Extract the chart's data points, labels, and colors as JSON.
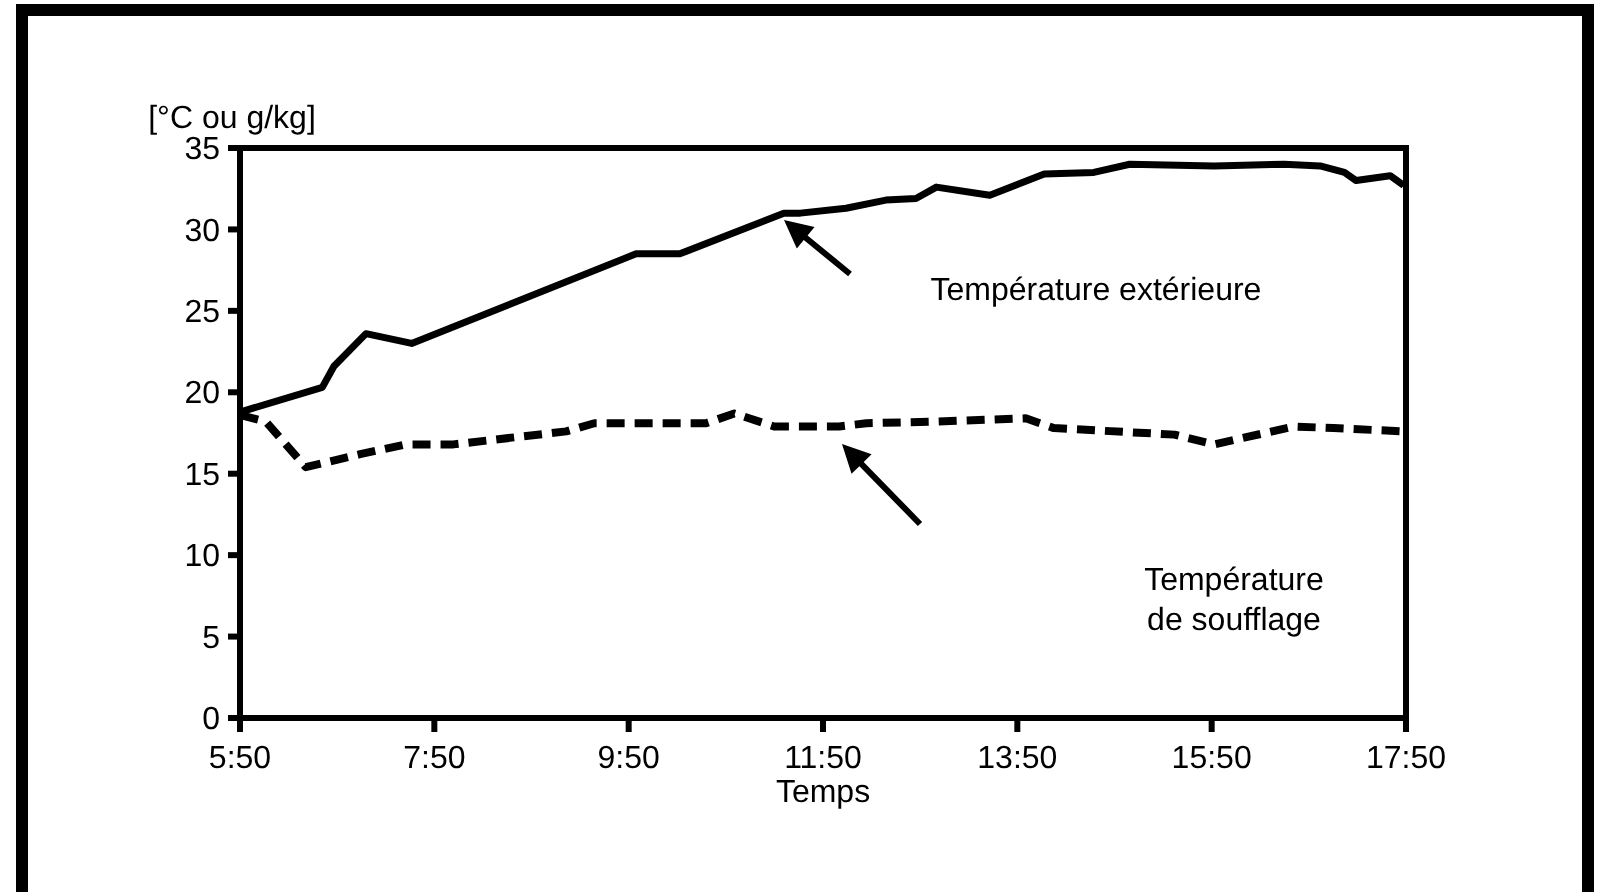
{
  "chart_data": {
    "type": "line",
    "ylabel": "[°C ou g/kg]",
    "xlabel": "Temps",
    "xlim": [
      5.8333,
      17.8333
    ],
    "xticks": [
      {
        "value": 5.8333,
        "label": "5:50"
      },
      {
        "value": 7.8333,
        "label": "7:50"
      },
      {
        "value": 9.8333,
        "label": "9:50"
      },
      {
        "value": 11.8333,
        "label": "11:50"
      },
      {
        "value": 13.8333,
        "label": "13:50"
      },
      {
        "value": 15.8333,
        "label": "15:50"
      },
      {
        "value": 17.8333,
        "label": "17:50"
      }
    ],
    "ylim": [
      0,
      35
    ],
    "yticks": [
      0,
      5,
      10,
      15,
      20,
      25,
      30,
      35
    ],
    "grid": false,
    "marker": "none",
    "series": [
      {
        "color": "#000000",
        "line_style": "solid",
        "x": [
          5.84,
          6.68,
          6.8,
          7.13,
          7.6,
          9.91,
          10.36,
          11.43,
          11.6,
          12.07,
          12.48,
          12.79,
          13.0,
          13.55,
          14.11,
          14.62,
          14.99,
          15.86,
          16.58,
          16.95,
          17.2,
          17.32,
          17.67,
          17.81
        ],
        "values": [
          18.8,
          20.3,
          21.6,
          23.6,
          23.0,
          28.5,
          28.5,
          31.0,
          31.0,
          31.3,
          31.8,
          31.9,
          32.6,
          32.1,
          33.4,
          33.5,
          34.0,
          33.9,
          34.0,
          33.9,
          33.5,
          33.0,
          33.3,
          32.7
        ]
      },
      {
        "color": "#000000",
        "line_style": "dashed",
        "x": [
          5.84,
          6.1,
          6.51,
          7.07,
          7.54,
          8.03,
          9.19,
          9.48,
          10.63,
          10.92,
          11.33,
          12.0,
          12.28,
          12.97,
          13.92,
          14.21,
          15.45,
          15.86,
          16.68,
          17.09,
          17.81
        ],
        "values": [
          18.6,
          18.2,
          15.4,
          16.2,
          16.8,
          16.8,
          17.6,
          18.1,
          18.1,
          18.7,
          17.9,
          17.9,
          18.1,
          18.2,
          18.4,
          17.8,
          17.4,
          16.8,
          17.9,
          17.8,
          17.6
        ]
      }
    ],
    "annotations": [
      "Température extérieure",
      "Température\nde soufflage"
    ]
  }
}
